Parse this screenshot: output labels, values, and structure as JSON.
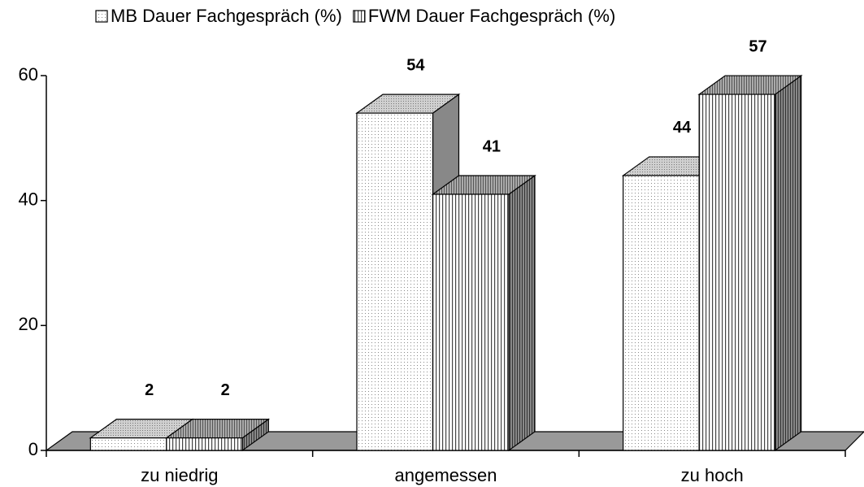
{
  "chart_data": {
    "type": "bar3d",
    "categories": [
      "zu niedrig",
      "angemessen",
      "zu hoch"
    ],
    "series": [
      {
        "name": "MB Dauer Fachgespräch (%)",
        "color": "#ffffff",
        "values": [
          2,
          54,
          44
        ]
      },
      {
        "name": "FWM Dauer Fachgespräch (%)",
        "color": "#ffffff",
        "values": [
          2,
          41,
          57
        ]
      }
    ],
    "ylim": [
      0,
      60
    ],
    "yticks": [
      0,
      20,
      40,
      60
    ],
    "legend": "top"
  }
}
